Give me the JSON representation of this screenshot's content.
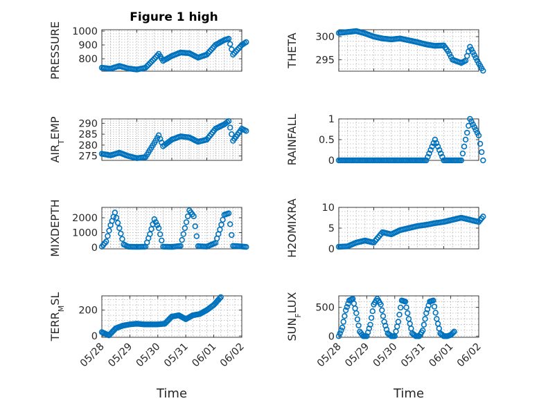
{
  "title": "Figure 1 high",
  "chart_data": [
    {
      "type": "scatter",
      "title": "Figure 1 high",
      "ylabel": "PRESSURE",
      "ylim": [
        710,
        1010
      ],
      "yticks": [
        800,
        900,
        1000
      ],
      "xlim": [
        "05/28",
        "06/01"
      ],
      "x": [
        "05/28 00:00",
        "05/28 06:00",
        "05/28 12:00",
        "05/28 18:00",
        "05/29 00:00",
        "05/29 06:00",
        "05/29 12:00",
        "05/29 15:00",
        "05/29 18:00",
        "05/30 00:00",
        "05/30 06:00",
        "05/30 12:00",
        "05/30 18:00",
        "05/31 00:00",
        "05/31 06:00",
        "05/31 12:00",
        "05/31 15:00",
        "05/31 18:00",
        "06/01 00:00",
        "06/01 03:00"
      ],
      "y": [
        735,
        728,
        748,
        730,
        722,
        735,
        800,
        835,
        785,
        820,
        845,
        840,
        808,
        830,
        900,
        935,
        945,
        830,
        900,
        920
      ]
    },
    {
      "type": "scatter",
      "ylabel": "THETA",
      "ylim": [
        292.5,
        301.5
      ],
      "yticks": [
        295,
        300
      ],
      "xlim": [
        "05/28",
        "06/01"
      ],
      "x": [
        "05/28 00:00",
        "05/28 06:00",
        "05/28 12:00",
        "05/28 18:00",
        "05/29 00:00",
        "05/29 06:00",
        "05/29 12:00",
        "05/29 18:00",
        "05/30 00:00",
        "05/30 06:00",
        "05/30 12:00",
        "05/30 18:00",
        "05/31 00:00",
        "05/31 03:00",
        "05/31 06:00",
        "05/31 12:00",
        "05/31 15:00",
        "05/31 18:00",
        "06/01 00:00",
        "06/01 03:00"
      ],
      "y": [
        300.8,
        301.0,
        301.2,
        300.7,
        300.0,
        299.6,
        299.4,
        299.6,
        299.2,
        298.8,
        298.3,
        298.0,
        298.1,
        296.8,
        295.0,
        294.3,
        294.8,
        297.8,
        294.2,
        292.6
      ]
    },
    {
      "type": "scatter",
      "ylabel": "AIR_TEMP",
      "ylim": [
        273,
        292
      ],
      "yticks": [
        275,
        280,
        285,
        290
      ],
      "xlim": [
        "05/28",
        "06/01"
      ],
      "x": [
        "05/28 00:00",
        "05/28 06:00",
        "05/28 12:00",
        "05/28 18:00",
        "05/29 00:00",
        "05/29 06:00",
        "05/29 12:00",
        "05/29 15:00",
        "05/29 18:00",
        "05/30 00:00",
        "05/30 06:00",
        "05/30 12:00",
        "05/30 18:00",
        "05/31 00:00",
        "05/31 06:00",
        "05/31 12:00",
        "05/31 15:00",
        "05/31 18:00",
        "06/01 00:00",
        "06/01 03:00"
      ],
      "y": [
        276.0,
        275.3,
        276.5,
        275.0,
        274.0,
        274.5,
        281.0,
        284.5,
        279.5,
        282.5,
        284.0,
        283.5,
        281.5,
        282.5,
        287.5,
        289.5,
        291.0,
        282.0,
        287.5,
        286.5
      ]
    },
    {
      "type": "scatter",
      "ylabel": "RAINFALL",
      "ylim": [
        0,
        1
      ],
      "yticks": [
        0,
        0.5,
        1
      ],
      "xlim": [
        "05/28",
        "06/01"
      ],
      "x": [
        "05/28 00:00",
        "05/28 06:00",
        "05/28 12:00",
        "05/28 18:00",
        "05/29 00:00",
        "05/29 06:00",
        "05/29 12:00",
        "05/29 18:00",
        "05/30 00:00",
        "05/30 06:00",
        "05/30 12:00",
        "05/30 18:00",
        "05/31 00:00",
        "05/31 06:00",
        "05/31 12:00",
        "05/31 18:00",
        "06/01 00:00",
        "06/01 03:00"
      ],
      "y": [
        0,
        0,
        0,
        0,
        0,
        0,
        0,
        0,
        0,
        0,
        0,
        0.5,
        0,
        0,
        0,
        1.0,
        0.6,
        0
      ]
    },
    {
      "type": "scatter",
      "ylabel": "MIXDEPTH",
      "ylim": [
        -100,
        2700
      ],
      "yticks": [
        0,
        1000,
        2000
      ],
      "xlim": [
        "05/28",
        "06/01"
      ],
      "x": [
        "05/28 00:00",
        "05/28 03:00",
        "05/28 06:00",
        "05/28 09:00",
        "05/28 12:00",
        "05/28 15:00",
        "05/28 18:00",
        "05/29 00:00",
        "05/29 06:00",
        "05/29 09:00",
        "05/29 12:00",
        "05/29 15:00",
        "05/29 18:00",
        "05/30 00:00",
        "05/30 06:00",
        "05/30 09:00",
        "05/30 12:00",
        "05/30 15:00",
        "05/30 18:00",
        "05/31 00:00",
        "05/31 06:00",
        "05/31 09:00",
        "05/31 12:00",
        "05/31 15:00",
        "05/31 18:00",
        "06/01 00:00",
        "06/01 03:00"
      ],
      "y": [
        50,
        400,
        1500,
        2350,
        1300,
        200,
        50,
        30,
        50,
        900,
        1900,
        1300,
        50,
        30,
        100,
        1300,
        2500,
        2100,
        80,
        50,
        300,
        1200,
        2200,
        2300,
        100,
        60,
        30
      ]
    },
    {
      "type": "scatter",
      "ylabel": "H2OMIXRA",
      "ylim": [
        0,
        10
      ],
      "yticks": [
        0,
        5,
        10
      ],
      "xlim": [
        "05/28",
        "06/01"
      ],
      "x": [
        "05/28 00:00",
        "05/28 06:00",
        "05/28 12:00",
        "05/28 18:00",
        "05/29 00:00",
        "05/29 06:00",
        "05/29 12:00",
        "05/29 18:00",
        "05/30 00:00",
        "05/30 06:00",
        "05/30 12:00",
        "05/30 18:00",
        "05/31 00:00",
        "05/31 06:00",
        "05/31 12:00",
        "05/31 18:00",
        "06/01 00:00",
        "06/01 03:00"
      ],
      "y": [
        0.5,
        0.6,
        1.5,
        2.0,
        1.5,
        4.0,
        3.5,
        4.5,
        5.0,
        5.5,
        5.8,
        6.2,
        6.5,
        7.0,
        7.5,
        7.0,
        6.5,
        7.8
      ]
    },
    {
      "type": "scatter",
      "ylabel": "TERR_MSL",
      "ylim": [
        -10,
        310
      ],
      "yticks": [
        0,
        200
      ],
      "xlim": [
        "05/28",
        "06/02"
      ],
      "xticks": [
        "05/28",
        "05/29",
        "05/30",
        "05/31",
        "06/01",
        "06/02"
      ],
      "xlabel": "Time",
      "x": [
        "05/28 00:00",
        "05/28 06:00",
        "05/28 12:00",
        "05/28 18:00",
        "05/29 00:00",
        "05/29 06:00",
        "05/29 12:00",
        "05/29 18:00",
        "05/30 00:00",
        "05/30 06:00",
        "05/30 12:00",
        "05/30 18:00",
        "05/31 00:00",
        "05/31 06:00",
        "05/31 12:00",
        "05/31 18:00",
        "06/01 00:00",
        "06/01 03:00",
        "06/01 06:00"
      ],
      "y": [
        30,
        5,
        60,
        80,
        90,
        95,
        90,
        90,
        90,
        95,
        150,
        160,
        130,
        160,
        170,
        200,
        240,
        270,
        300
      ]
    },
    {
      "type": "scatter",
      "ylabel": "SUN_FLUX",
      "ylim": [
        -20,
        700
      ],
      "yticks": [
        0,
        500
      ],
      "xlim": [
        "05/28",
        "06/02"
      ],
      "xticks": [
        "05/28",
        "05/29",
        "05/30",
        "05/31",
        "06/01",
        "06/02"
      ],
      "xlabel": "Time",
      "x": [
        "05/28 00:00",
        "05/28 03:00",
        "05/28 06:00",
        "05/28 09:00",
        "05/28 12:00",
        "05/28 15:00",
        "05/28 18:00",
        "05/28 21:00",
        "05/29 00:00",
        "05/29 03:00",
        "05/29 06:00",
        "05/29 09:00",
        "05/29 12:00",
        "05/29 15:00",
        "05/29 18:00",
        "05/29 21:00",
        "05/30 00:00",
        "05/30 03:00",
        "05/30 06:00",
        "05/30 09:00",
        "05/30 12:00",
        "05/30 15:00",
        "05/30 18:00",
        "05/30 21:00",
        "05/31 00:00",
        "05/31 03:00",
        "05/31 06:00",
        "05/31 09:00",
        "05/31 12:00",
        "05/31 15:00",
        "05/31 18:00",
        "05/31 21:00",
        "06/01 00:00",
        "06/01 03:00"
      ],
      "y": [
        0,
        150,
        450,
        620,
        650,
        400,
        80,
        0,
        0,
        200,
        550,
        650,
        550,
        250,
        50,
        0,
        0,
        250,
        620,
        600,
        300,
        50,
        0,
        0,
        100,
        400,
        600,
        620,
        300,
        50,
        0,
        0,
        20,
        80
      ]
    }
  ]
}
